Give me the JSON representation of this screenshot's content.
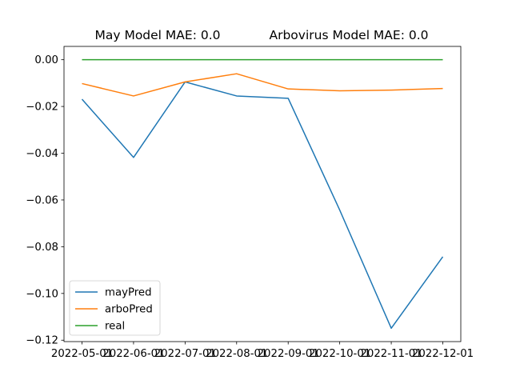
{
  "chart_data": {
    "type": "line",
    "title_left": "May Model MAE: 0.0",
    "title_right": "Arbovirus Model MAE: 0.0",
    "xlabel": "",
    "ylabel": "",
    "x": [
      "2022-05-01",
      "2022-06-01",
      "2022-07-01",
      "2022-08-01",
      "2022-09-01",
      "2022-10-01",
      "2022-11-01",
      "2022-12-01"
    ],
    "ylim": [
      -0.1206,
      0.0057
    ],
    "yticks": [
      0.0,
      -0.02,
      -0.04,
      -0.06,
      -0.08,
      -0.1,
      -0.12
    ],
    "ytick_labels": [
      "0.00",
      "−0.02",
      "−0.04",
      "−0.06",
      "−0.08",
      "−0.10",
      "−0.12"
    ],
    "grid": false,
    "legend_position": "lower-left",
    "series": [
      {
        "name": "mayPred",
        "color": "#1f77b4",
        "values": [
          -0.0169,
          -0.0418,
          -0.0095,
          -0.0155,
          -0.0165,
          -0.0643,
          -0.1149,
          -0.0843
        ]
      },
      {
        "name": "arboPred",
        "color": "#ff7f0e",
        "values": [
          -0.0102,
          -0.0155,
          -0.0095,
          -0.006,
          -0.0125,
          -0.0133,
          -0.013,
          -0.0123
        ]
      },
      {
        "name": "real",
        "color": "#2ca02c",
        "values": [
          0,
          0,
          0,
          0,
          0,
          0,
          0,
          0
        ]
      }
    ]
  }
}
